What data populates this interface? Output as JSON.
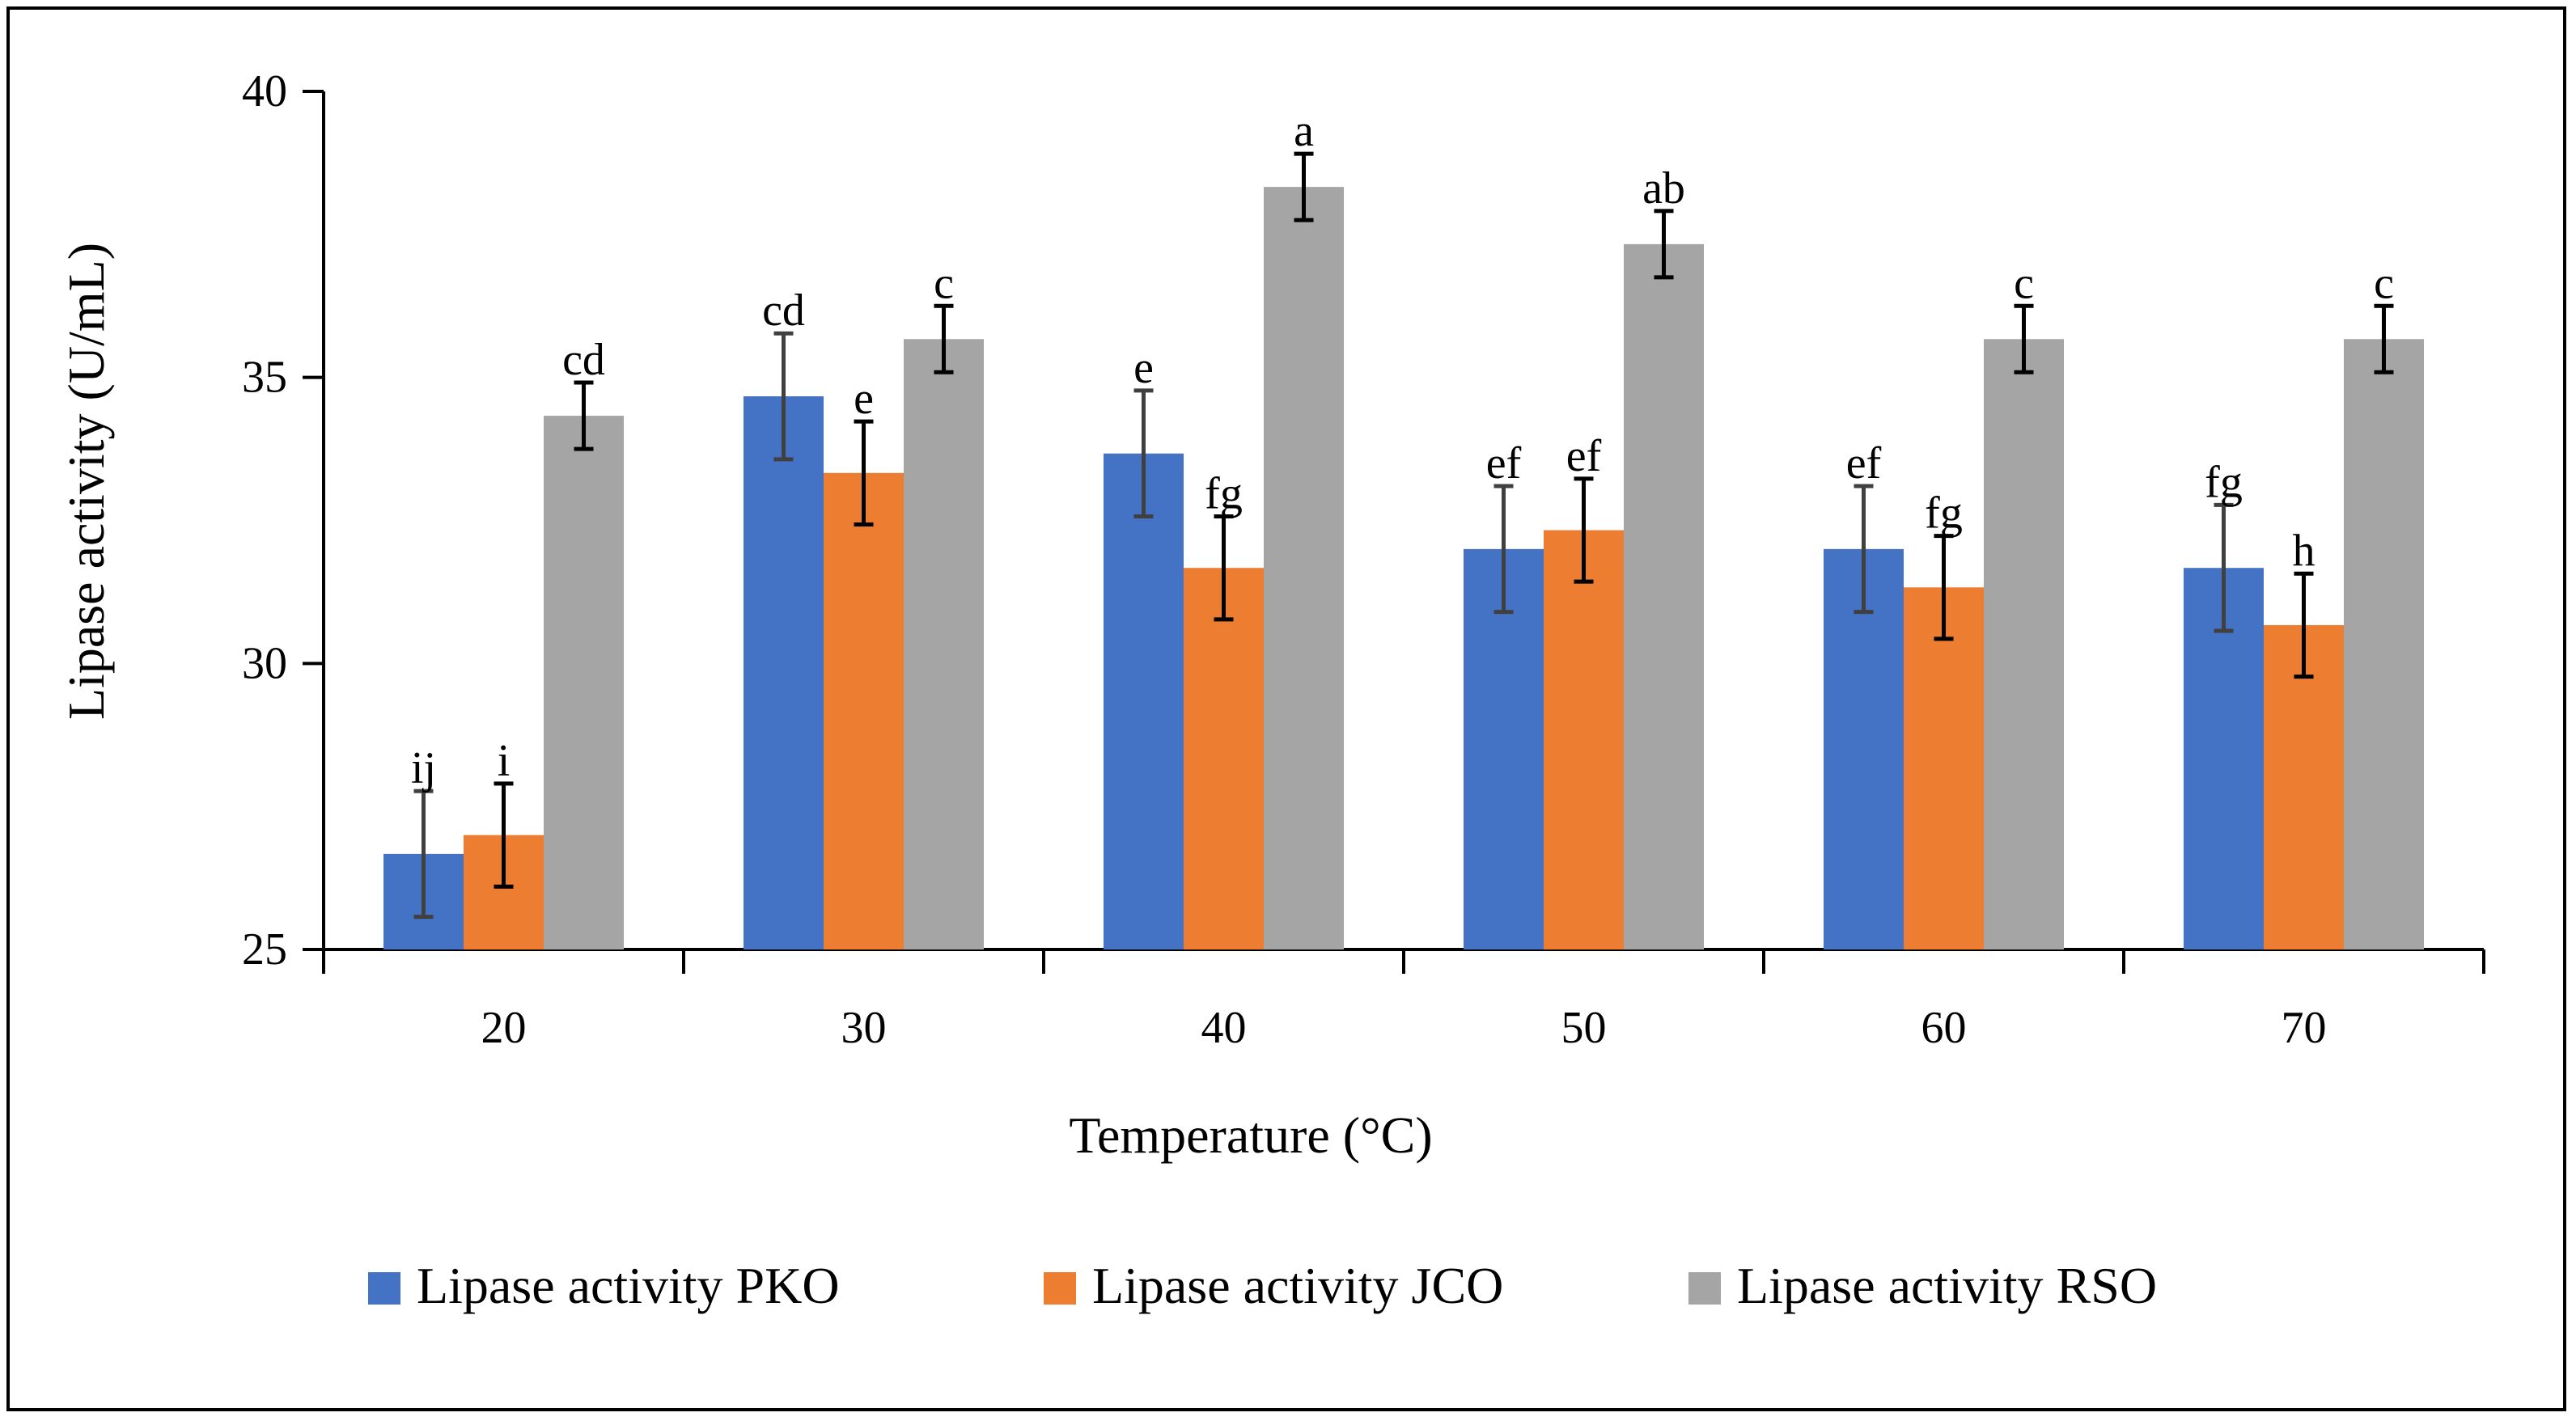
{
  "chart_data": {
    "type": "bar",
    "title": "",
    "xlabel": "Temperature (°C)",
    "ylabel": "Lipase activity (U/mL)",
    "ylim": [
      25,
      40
    ],
    "yticks": [
      "25",
      "30",
      "35",
      "40"
    ],
    "categories": [
      "20",
      "30",
      "40",
      "50",
      "60",
      "70"
    ],
    "legend_position": "bottom",
    "series": [
      {
        "name": "Lipase activity PKO",
        "color": "#4472C4",
        "values": [
          26.67,
          34.67,
          33.67,
          32.0,
          32.0,
          31.67
        ],
        "errors": [
          1.1,
          1.1,
          1.1,
          1.1,
          1.1,
          1.1
        ],
        "labels": [
          "ij",
          "cd",
          "e",
          "ef",
          "ef",
          "fg"
        ]
      },
      {
        "name": "Lipase activity JCO",
        "color": "#ED7D31",
        "values": [
          27.0,
          33.33,
          31.67,
          32.33,
          31.33,
          30.67
        ],
        "errors": [
          0.9,
          0.9,
          0.9,
          0.9,
          0.9,
          0.9
        ],
        "labels": [
          "i",
          "e",
          "fg",
          "ef",
          "fg",
          "h"
        ]
      },
      {
        "name": "Lipase activity RSO",
        "color": "#A5A5A5",
        "values": [
          34.33,
          35.67,
          38.33,
          37.33,
          35.67,
          35.67
        ],
        "errors": [
          0.58,
          0.58,
          0.58,
          0.58,
          0.58,
          0.58
        ],
        "labels": [
          "cd",
          "c",
          "a",
          "ab",
          "c",
          "c"
        ]
      }
    ]
  }
}
